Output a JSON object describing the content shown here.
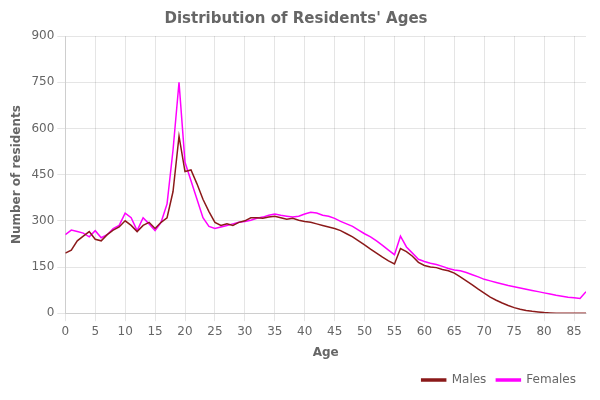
{
  "chart_data": {
    "type": "line",
    "title": "Distribution of Residents' Ages",
    "xlabel": "Age",
    "ylabel": "Number of residents",
    "x": [
      0,
      1,
      2,
      3,
      4,
      5,
      6,
      7,
      8,
      9,
      10,
      11,
      12,
      13,
      14,
      15,
      16,
      17,
      18,
      19,
      20,
      21,
      22,
      23,
      24,
      25,
      26,
      27,
      28,
      29,
      30,
      31,
      32,
      33,
      34,
      35,
      36,
      37,
      38,
      39,
      40,
      41,
      42,
      43,
      44,
      45,
      46,
      47,
      48,
      49,
      50,
      51,
      52,
      53,
      54,
      55,
      56,
      57,
      58,
      59,
      60,
      61,
      62,
      63,
      64,
      65,
      66,
      67,
      68,
      69,
      70,
      71,
      72,
      73,
      74,
      75,
      76,
      77,
      78,
      79,
      80,
      81,
      82,
      83,
      84,
      85,
      86,
      87
    ],
    "series": [
      {
        "name": "Males",
        "color": "#8B1A1A",
        "values": [
          195,
          205,
          235,
          250,
          265,
          240,
          235,
          255,
          270,
          280,
          300,
          285,
          265,
          285,
          295,
          275,
          295,
          310,
          395,
          575,
          460,
          465,
          420,
          370,
          330,
          295,
          285,
          290,
          285,
          295,
          300,
          310,
          310,
          308,
          312,
          315,
          310,
          305,
          308,
          302,
          298,
          295,
          290,
          285,
          280,
          275,
          268,
          258,
          248,
          235,
          222,
          208,
          195,
          182,
          170,
          160,
          210,
          200,
          185,
          165,
          155,
          150,
          148,
          142,
          138,
          130,
          118,
          105,
          92,
          78,
          65,
          52,
          42,
          33,
          25,
          18,
          13,
          9,
          6,
          4,
          2,
          1,
          0,
          0,
          0,
          0,
          0,
          0
        ]
      },
      {
        "name": "Females",
        "color": "#FF00FF",
        "values": [
          255,
          270,
          265,
          260,
          248,
          268,
          245,
          255,
          275,
          285,
          325,
          310,
          268,
          310,
          290,
          268,
          295,
          355,
          530,
          750,
          490,
          430,
          370,
          310,
          282,
          275,
          280,
          285,
          290,
          295,
          298,
          302,
          308,
          312,
          318,
          322,
          318,
          315,
          312,
          315,
          322,
          328,
          325,
          318,
          315,
          308,
          298,
          290,
          282,
          270,
          258,
          248,
          235,
          220,
          205,
          190,
          250,
          215,
          195,
          175,
          168,
          162,
          158,
          152,
          145,
          140,
          138,
          132,
          125,
          118,
          110,
          105,
          100,
          95,
          90,
          86,
          82,
          78,
          74,
          70,
          66,
          62,
          58,
          55,
          52,
          50,
          48,
          70
        ]
      }
    ],
    "xlim": [
      0,
      87
    ],
    "xticks": [
      0,
      5,
      10,
      15,
      20,
      25,
      30,
      35,
      40,
      45,
      50,
      55,
      60,
      65,
      70,
      75,
      80,
      85
    ],
    "ylim": [
      0,
      900
    ],
    "yticks": [
      0,
      150,
      300,
      450,
      600,
      750,
      900
    ],
    "grid": true,
    "legend": "lower right"
  }
}
